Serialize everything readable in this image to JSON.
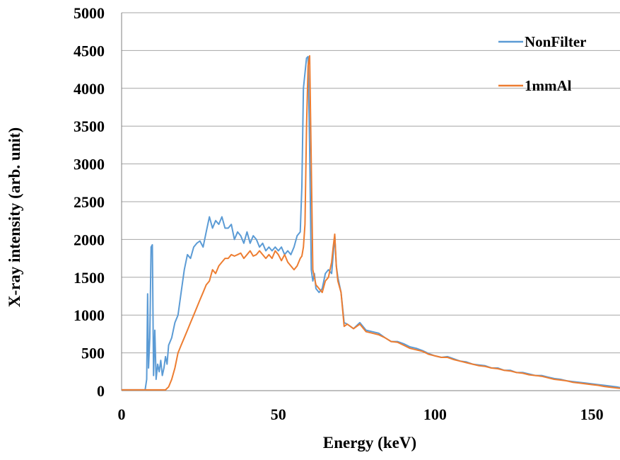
{
  "chart_data": {
    "type": "line",
    "title": "",
    "xlabel": "Energy (keV)",
    "ylabel": "X-ray intensity (arb. unit)",
    "xlim": [
      0,
      159
    ],
    "ylim": [
      0,
      5000
    ],
    "xticks": [
      0,
      50,
      100,
      150
    ],
    "yticks": [
      0,
      500,
      1000,
      1500,
      2000,
      2500,
      3000,
      3500,
      4000,
      4500,
      5000
    ],
    "grid": "horizontal",
    "legend_position": "top-right",
    "series": [
      {
        "name": "NonFilter",
        "color": "#5B9BD5",
        "x": [
          0,
          7.5,
          8,
          8.3,
          8.6,
          9,
          9.4,
          9.8,
          10.2,
          10.6,
          11,
          11.5,
          12,
          12.5,
          13,
          13.5,
          14,
          14.5,
          15,
          16,
          17,
          18,
          19,
          20,
          21,
          22,
          23,
          24,
          25,
          26,
          27,
          28,
          29,
          30,
          31,
          32,
          33,
          34,
          35,
          36,
          37,
          38,
          39,
          40,
          41,
          42,
          43,
          44,
          45,
          46,
          47,
          48,
          49,
          50,
          51,
          52,
          53,
          54,
          55,
          56,
          57,
          57.5,
          58,
          58.5,
          59,
          59.5,
          60,
          60.5,
          61,
          61.5,
          62,
          63,
          64,
          65,
          66,
          67,
          67.5,
          68,
          68.5,
          69,
          70,
          71,
          72,
          74,
          76,
          78,
          80,
          82,
          84,
          86,
          88,
          90,
          92,
          94,
          96,
          98,
          100,
          102,
          104,
          106,
          108,
          110,
          112,
          114,
          116,
          118,
          120,
          122,
          124,
          126,
          128,
          130,
          132,
          134,
          136,
          138,
          140,
          142,
          144,
          146,
          148,
          150,
          152,
          154,
          156,
          158,
          159
        ],
        "values": [
          10,
          10,
          150,
          1280,
          300,
          700,
          1900,
          1930,
          200,
          800,
          150,
          350,
          250,
          400,
          200,
          300,
          450,
          350,
          600,
          700,
          900,
          1000,
          1300,
          1600,
          1800,
          1750,
          1900,
          1950,
          1980,
          1900,
          2100,
          2300,
          2150,
          2250,
          2200,
          2300,
          2150,
          2150,
          2200,
          2000,
          2100,
          2050,
          1950,
          2100,
          1950,
          2050,
          2000,
          1900,
          1950,
          1850,
          1900,
          1850,
          1900,
          1850,
          1900,
          1800,
          1850,
          1800,
          1900,
          2050,
          2100,
          2700,
          4000,
          4200,
          4400,
          4420,
          3200,
          1600,
          1450,
          1550,
          1350,
          1300,
          1350,
          1550,
          1600,
          1550,
          1800,
          2050,
          1650,
          1500,
          1300,
          900,
          880,
          820,
          900,
          800,
          780,
          760,
          700,
          650,
          650,
          620,
          580,
          560,
          530,
          490,
          460,
          440,
          450,
          420,
          390,
          380,
          350,
          340,
          330,
          300,
          300,
          270,
          270,
          240,
          240,
          220,
          200,
          200,
          180,
          160,
          150,
          130,
          120,
          110,
          100,
          90,
          80,
          70,
          60,
          50,
          40
        ]
      },
      {
        "name": "1mmAl",
        "color": "#ED7D31",
        "x": [
          0,
          14,
          15,
          16,
          17,
          18,
          19,
          20,
          21,
          22,
          23,
          24,
          25,
          26,
          27,
          28,
          29,
          30,
          31,
          32,
          33,
          34,
          35,
          36,
          37,
          38,
          39,
          40,
          41,
          42,
          43,
          44,
          45,
          46,
          47,
          48,
          49,
          50,
          51,
          52,
          53,
          54,
          55,
          56,
          57,
          57.5,
          58,
          58.5,
          59,
          59.5,
          60,
          60.5,
          61,
          61.5,
          62,
          63,
          64,
          65,
          66,
          67,
          67.5,
          68,
          68.5,
          69,
          70,
          71,
          72,
          74,
          76,
          78,
          80,
          82,
          84,
          86,
          88,
          90,
          92,
          94,
          96,
          98,
          100,
          102,
          104,
          106,
          108,
          110,
          112,
          114,
          116,
          118,
          120,
          122,
          124,
          126,
          128,
          130,
          132,
          134,
          136,
          138,
          140,
          142,
          144,
          146,
          148,
          150,
          152,
          154,
          156,
          158,
          159
        ],
        "values": [
          10,
          10,
          50,
          150,
          300,
          500,
          600,
          700,
          800,
          900,
          1000,
          1100,
          1200,
          1300,
          1400,
          1450,
          1600,
          1550,
          1650,
          1700,
          1750,
          1750,
          1800,
          1780,
          1800,
          1820,
          1750,
          1800,
          1850,
          1780,
          1800,
          1850,
          1800,
          1750,
          1800,
          1750,
          1850,
          1800,
          1720,
          1800,
          1700,
          1650,
          1600,
          1650,
          1750,
          1780,
          1900,
          2200,
          3500,
          4300,
          4430,
          3000,
          1600,
          1500,
          1400,
          1350,
          1300,
          1450,
          1500,
          1700,
          1900,
          2070,
          1650,
          1450,
          1300,
          850,
          880,
          820,
          880,
          780,
          760,
          740,
          700,
          650,
          640,
          600,
          560,
          540,
          520,
          480,
          460,
          440,
          440,
          410,
          390,
          370,
          350,
          330,
          320,
          300,
          290,
          270,
          260,
          240,
          230,
          210,
          200,
          190,
          170,
          150,
          140,
          130,
          110,
          100,
          90,
          80,
          70,
          55,
          45,
          35,
          30
        ]
      }
    ]
  }
}
